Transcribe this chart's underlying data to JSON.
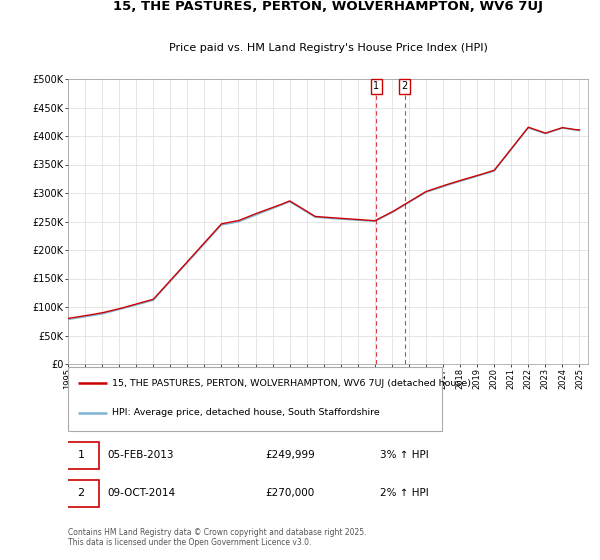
{
  "title_line1": "15, THE PASTURES, PERTON, WOLVERHAMPTON, WV6 7UJ",
  "title_line2": "Price paid vs. HM Land Registry's House Price Index (HPI)",
  "ylim": [
    0,
    500000
  ],
  "yticks": [
    0,
    50000,
    100000,
    150000,
    200000,
    250000,
    300000,
    350000,
    400000,
    450000,
    500000
  ],
  "ytick_labels": [
    "£0",
    "£50K",
    "£100K",
    "£150K",
    "£200K",
    "£250K",
    "£300K",
    "£350K",
    "£400K",
    "£450K",
    "£500K"
  ],
  "line1_color": "#cc0000",
  "line2_color": "#7eb4d4",
  "line1_label": "15, THE PASTURES, PERTON, WOLVERHAMPTON, WV6 7UJ (detached house)",
  "line2_label": "HPI: Average price, detached house, South Staffordshire",
  "annotation1_date": "05-FEB-2013",
  "annotation1_price": "£249,999",
  "annotation1_hpi": "3% ↑ HPI",
  "annotation2_date": "09-OCT-2014",
  "annotation2_price": "£270,000",
  "annotation2_hpi": "2% ↑ HPI",
  "footer": "Contains HM Land Registry data © Crown copyright and database right 2025.\nThis data is licensed under the Open Government Licence v3.0.",
  "background_color": "#ffffff",
  "grid_color": "#e0e0e0",
  "vline_color": "#cc0000",
  "sale1_year": 2013.083,
  "sale2_year": 2014.75,
  "xlim_start": 1995,
  "xlim_end": 2025.5
}
